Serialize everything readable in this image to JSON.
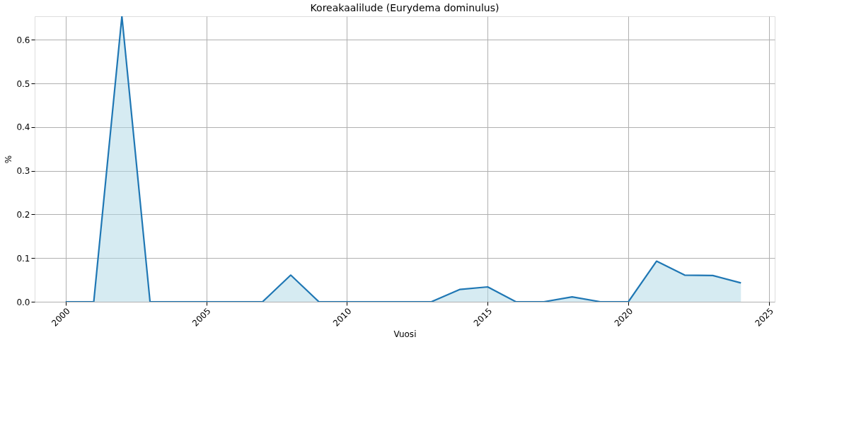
{
  "chart_data": {
    "type": "area",
    "title": "Koreakaalilude (Eurydema dominulus)",
    "xlabel": "Vuosi",
    "ylabel": "%",
    "x": [
      2000,
      2001,
      2002,
      2003,
      2004,
      2005,
      2006,
      2007,
      2008,
      2009,
      2010,
      2011,
      2012,
      2013,
      2014,
      2015,
      2016,
      2017,
      2018,
      2019,
      2020,
      2021,
      2022,
      2023,
      2024
    ],
    "series": [
      {
        "color": "#1f77b4",
        "values": [
          0,
          0,
          0.654,
          0,
          0,
          0,
          0,
          0,
          0.061,
          0,
          0,
          0,
          0,
          0,
          0.028,
          0.034,
          0,
          0,
          0.011,
          0,
          0,
          0.093,
          0.061,
          0.06,
          0.043
        ]
      }
    ],
    "xlim": [
      1998.9,
      2025.2
    ],
    "xticks": [
      2000,
      2005,
      2010,
      2015,
      2020,
      2025
    ],
    "ylim": [
      0,
      0.654
    ],
    "yticks": [
      {
        "value": 0,
        "label": "0.0"
      },
      0.1,
      0.2,
      0.3,
      0.4,
      0.5,
      0.6
    ],
    "grid": true
  }
}
